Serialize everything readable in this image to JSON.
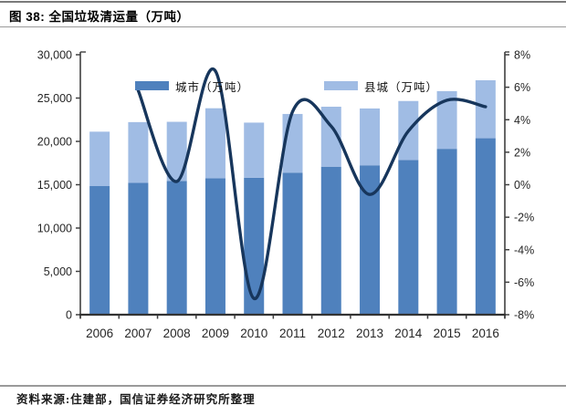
{
  "header": {
    "title": "图 38:  全国垃圾清运量（万吨）"
  },
  "footer": {
    "source": "资料来源:住建部，国信证券经济研究所整理"
  },
  "chart_data": {
    "type": "bar",
    "title": "全国垃圾清运量（万吨）",
    "categories": [
      "2006",
      "2007",
      "2008",
      "2009",
      "2010",
      "2011",
      "2012",
      "2013",
      "2014",
      "2015",
      "2016"
    ],
    "series": [
      {
        "name": "城市（万吨）",
        "type": "bar",
        "stack": "total",
        "color": "#4f81bd",
        "values": [
          14841,
          15215,
          15438,
          15734,
          15805,
          16395,
          17081,
          17239,
          17860,
          19142,
          20362
        ]
      },
      {
        "name": "县城（万吨）",
        "type": "bar",
        "stack": "total",
        "color": "#a0bce4",
        "values": [
          6280,
          7010,
          6820,
          8090,
          6360,
          6770,
          6920,
          6560,
          6800,
          6660,
          6690
        ]
      },
      {
        "name": "",
        "type": "line",
        "axis": "right",
        "color": "#17365c",
        "values": [
          null,
          5.8,
          0.2,
          7.0,
          -7.0,
          4.5,
          3.6,
          -0.6,
          3.3,
          5.2,
          4.8
        ]
      }
    ],
    "left_axis": {
      "min": 0,
      "max": 30000,
      "tick_labels": [
        "0",
        "5,000",
        "10,000",
        "15,000",
        "20,000",
        "25,000",
        "30,000"
      ]
    },
    "right_axis": {
      "min": -8,
      "max": 8,
      "tick_labels": [
        "-8%",
        "-6%",
        "-4%",
        "-2%",
        "0%",
        "2%",
        "4%",
        "6%",
        "8%"
      ]
    },
    "legend": [
      {
        "label": "城市（万吨）",
        "color": "#4f81bd"
      },
      {
        "label": "县城（万吨）",
        "color": "#a0bce4"
      }
    ],
    "grid": false,
    "legend_position": "top-inside"
  }
}
